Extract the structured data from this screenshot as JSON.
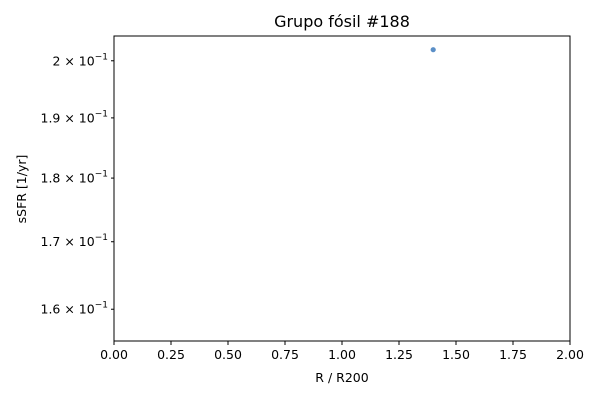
{
  "chart_data": {
    "type": "scatter",
    "title": "Grupo fósil #188",
    "xlabel": "R / R200",
    "ylabel": "sSFR [1/yr]",
    "xlim": [
      0.0,
      2.0
    ],
    "ylim": [
      0.1555,
      0.2045
    ],
    "yscale": "log",
    "x_ticks": [
      {
        "value": 0.0,
        "label": "0.00"
      },
      {
        "value": 0.25,
        "label": "0.25"
      },
      {
        "value": 0.5,
        "label": "0.50"
      },
      {
        "value": 0.75,
        "label": "0.75"
      },
      {
        "value": 1.0,
        "label": "1.00"
      },
      {
        "value": 1.25,
        "label": "1.25"
      },
      {
        "value": 1.5,
        "label": "1.50"
      },
      {
        "value": 1.75,
        "label": "1.75"
      },
      {
        "value": 2.0,
        "label": "2.00"
      }
    ],
    "y_ticks": [
      {
        "value": 0.2,
        "mantissa": "2",
        "base": "10",
        "exp": "−1"
      },
      {
        "value": 0.19,
        "mantissa": "1.9",
        "base": "10",
        "exp": "−1"
      },
      {
        "value": 0.18,
        "mantissa": "1.8",
        "base": "10",
        "exp": "−1"
      },
      {
        "value": 0.17,
        "mantissa": "1.7",
        "base": "10",
        "exp": "−1"
      },
      {
        "value": 0.16,
        "mantissa": "1.6",
        "base": "10",
        "exp": "−1"
      }
    ],
    "points": [
      {
        "x": 1.4,
        "y": 0.202
      }
    ],
    "point_color": "#5b8fc7",
    "grid": false
  }
}
